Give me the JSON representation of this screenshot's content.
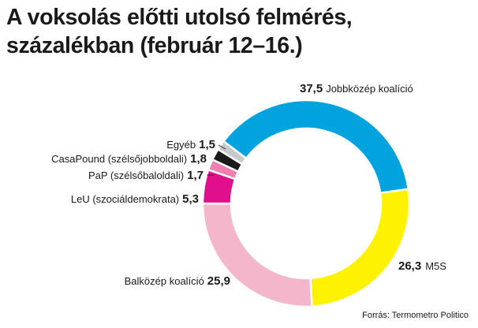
{
  "title_line1": "A voksolás előtti utolsó felmérés,",
  "title_line2": "százalékban (február 12–16.)",
  "source": "Forrás: Termometro Politico",
  "chart_data": {
    "type": "pie",
    "donut": true,
    "title": "A voksolás előtti utolsó felmérés, százalékban (február 12–16.)",
    "unit": "%",
    "slices": [
      {
        "key": "jobbkozep",
        "label": "Jobbközép koalíció",
        "value": 37.5,
        "value_text": "37,5",
        "color": "#00a3dd"
      },
      {
        "key": "m5s",
        "label": "M5S",
        "value": 26.3,
        "value_text": "26,3",
        "color": "#fff200"
      },
      {
        "key": "balkozep",
        "label": "Balközép koalíció",
        "value": 25.9,
        "value_text": "25,9",
        "color": "#f4b6cb"
      },
      {
        "key": "leu",
        "label": "LeU (szociáldemokrata)",
        "value": 5.3,
        "value_text": "5,3",
        "color": "#e10f8b"
      },
      {
        "key": "pap",
        "label": "PaP (szélsőbaloldali)",
        "value": 1.7,
        "value_text": "1,7",
        "color": "#ee7fb0"
      },
      {
        "key": "casapound",
        "label": "CasaPound (szélsőjobboldali)",
        "value": 1.8,
        "value_text": "1,8",
        "color": "#1a1a1a"
      },
      {
        "key": "egyeb",
        "label": "Egyéb",
        "value": 1.5,
        "value_text": "1,5",
        "color": "#c8c9cb"
      }
    ]
  }
}
